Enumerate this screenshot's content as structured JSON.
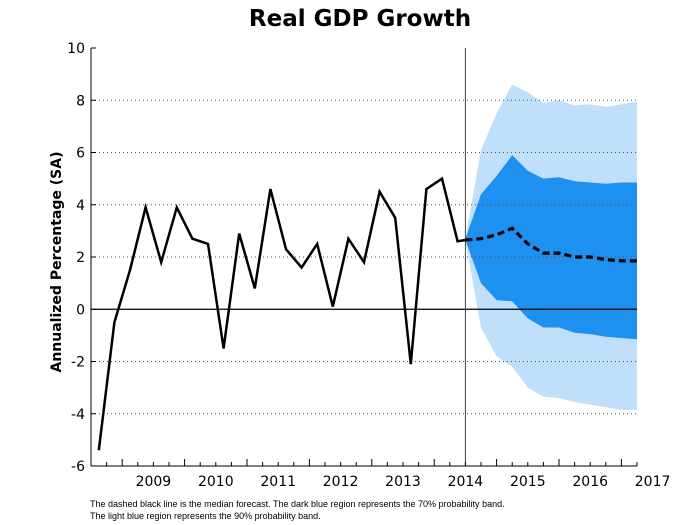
{
  "chart_data": {
    "type": "line",
    "title": "Real GDP Growth",
    "ylabel": "Annualized Percentage (SA)",
    "xlabel": "",
    "ylim": [
      -6,
      10
    ],
    "yticks": [
      -6,
      -4,
      -2,
      0,
      2,
      4,
      6,
      8,
      10
    ],
    "xlim": [
      2008.5,
      2017.25
    ],
    "xtick_labels": [
      "2009",
      "2010",
      "2011",
      "2012",
      "2013",
      "2014",
      "2015",
      "2016",
      "2017"
    ],
    "grid": "horizontal-dotted",
    "forecast_start": 2014.5,
    "series": [
      {
        "x": [
          2008.625,
          2008.875,
          2009.125,
          2009.375,
          2009.625,
          2009.875,
          2010.125,
          2010.375,
          2010.625,
          2010.875,
          2011.125,
          2011.375,
          2011.625,
          2011.875,
          2012.125,
          2012.375,
          2012.625,
          2012.875,
          2013.125,
          2013.375,
          2013.625,
          2013.875,
          2014.125,
          2014.375,
          2014.5
        ],
        "values": [
          -5.4,
          -0.5,
          1.5,
          3.9,
          1.8,
          3.9,
          2.7,
          2.5,
          -1.5,
          2.9,
          0.8,
          4.6,
          2.3,
          1.6,
          2.5,
          0.1,
          2.7,
          1.8,
          4.5,
          3.5,
          -2.1,
          4.6,
          5.0,
          2.6,
          2.65
        ],
        "style": "solid",
        "color": "#000000"
      },
      {
        "x": [
          2014.5,
          2014.75,
          2015.0,
          2015.25,
          2015.5,
          2015.75,
          2016.0,
          2016.25,
          2016.5,
          2016.75,
          2017.0,
          2017.25
        ],
        "values": [
          2.65,
          2.7,
          2.85,
          3.1,
          2.5,
          2.15,
          2.15,
          2.0,
          2.0,
          1.9,
          1.85,
          1.85
        ],
        "style": "dashed",
        "color": "#000000"
      }
    ],
    "bands": [
      {
        "x": [
          2014.5,
          2014.75,
          2015.0,
          2015.25,
          2015.5,
          2015.75,
          2016.0,
          2016.25,
          2016.5,
          2016.75,
          2017.0,
          2017.25
        ],
        "lower": [
          2.6,
          -0.7,
          -1.8,
          -2.2,
          -3.0,
          -3.35,
          -3.4,
          -3.55,
          -3.65,
          -3.75,
          -3.85,
          -3.85
        ],
        "upper": [
          2.7,
          6.1,
          7.5,
          8.6,
          8.3,
          7.9,
          8.0,
          7.8,
          7.85,
          7.75,
          7.85,
          7.95
        ],
        "color": "#bfdffb"
      },
      {
        "x": [
          2014.5,
          2014.75,
          2015.0,
          2015.25,
          2015.5,
          2015.75,
          2016.0,
          2016.25,
          2016.5,
          2016.75,
          2017.0,
          2017.25
        ],
        "lower": [
          2.65,
          1.0,
          0.35,
          0.3,
          -0.35,
          -0.7,
          -0.7,
          -0.9,
          -0.95,
          -1.05,
          -1.1,
          -1.15
        ],
        "upper": [
          2.7,
          4.4,
          5.1,
          5.9,
          5.3,
          5.0,
          5.05,
          4.9,
          4.85,
          4.8,
          4.85,
          4.85
        ],
        "color": "#1e90f0"
      }
    ],
    "annotations": [
      "The dashed black line is the median forecast. The dark blue region represents the 70% probability band.",
      "The light blue region represents the 90% probability band."
    ]
  }
}
